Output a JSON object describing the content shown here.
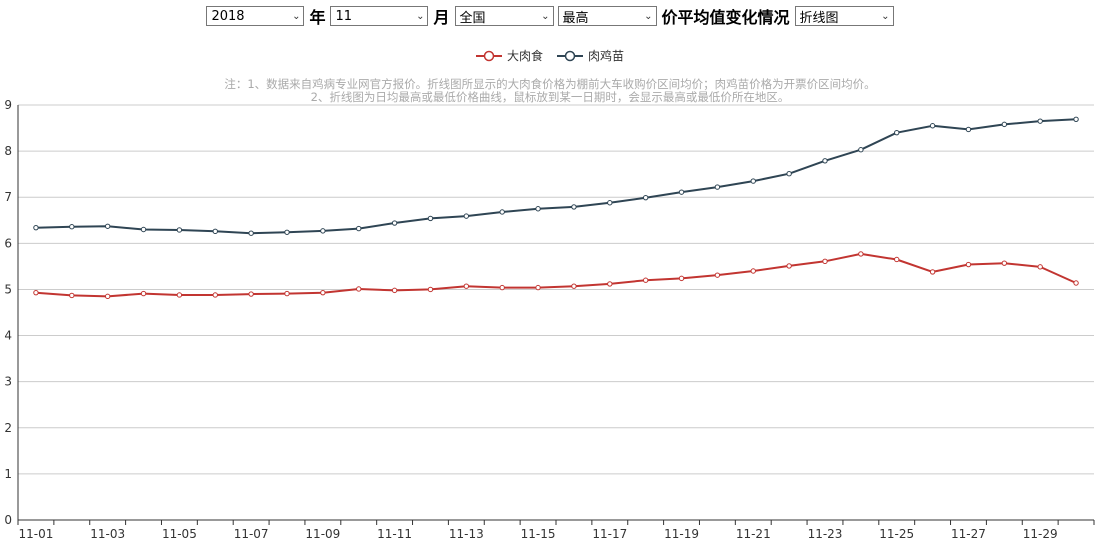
{
  "controls": {
    "year": "2018",
    "year_suffix": "年",
    "month": "11",
    "month_suffix": "月",
    "region": "全国",
    "stat": "最高",
    "title_text": "价平均值变化情况",
    "chart_type": "折线图"
  },
  "note": {
    "line1": "注：1、数据来自鸡病专业网官方报价。折线图所显示的大肉食价格为棚前大车收购价区间均价；肉鸡苗价格为开票价区间均价。",
    "line2": "2、折线图为日均最高或最低价格曲线，鼠标放到某一日期时，会显示最高或最低价所在地区。"
  },
  "chart_data": {
    "type": "line",
    "x": [
      "11-01",
      "11-02",
      "11-03",
      "11-04",
      "11-05",
      "11-06",
      "11-07",
      "11-08",
      "11-09",
      "11-10",
      "11-11",
      "11-12",
      "11-13",
      "11-14",
      "11-15",
      "11-16",
      "11-17",
      "11-18",
      "11-19",
      "11-20",
      "11-21",
      "11-22",
      "11-23",
      "11-24",
      "11-25",
      "11-26",
      "11-27",
      "11-28",
      "11-29",
      "11-30"
    ],
    "xtick_labels": [
      "11-01",
      "11-03",
      "11-05",
      "11-07",
      "11-09",
      "11-11",
      "11-13",
      "11-15",
      "11-17",
      "11-19",
      "11-21",
      "11-23",
      "11-25",
      "11-27",
      "11-29"
    ],
    "ylim": [
      0,
      9
    ],
    "yticks": [
      "0",
      "1",
      "2",
      "3",
      "4",
      "5",
      "6",
      "7",
      "8",
      "9"
    ],
    "grid": true,
    "legend_position": "top-center",
    "series": [
      {
        "name": "大肉食",
        "color": "#c23531",
        "values": [
          4.93,
          4.87,
          4.85,
          4.91,
          4.88,
          4.88,
          4.9,
          4.91,
          4.93,
          5.01,
          4.98,
          5.0,
          5.07,
          5.04,
          5.04,
          5.07,
          5.12,
          5.2,
          5.24,
          5.31,
          5.4,
          5.51,
          5.61,
          5.77,
          5.65,
          5.38,
          5.54,
          5.57,
          5.49,
          5.14
        ]
      },
      {
        "name": "肉鸡苗",
        "color": "#2f4554",
        "values": [
          6.34,
          6.36,
          6.37,
          6.3,
          6.29,
          6.26,
          6.22,
          6.24,
          6.27,
          6.32,
          6.44,
          6.54,
          6.59,
          6.68,
          6.75,
          6.79,
          6.88,
          6.99,
          7.11,
          7.22,
          7.35,
          7.51,
          7.79,
          8.03,
          8.4,
          8.55,
          8.47,
          8.58,
          8.65,
          8.69
        ]
      }
    ]
  }
}
